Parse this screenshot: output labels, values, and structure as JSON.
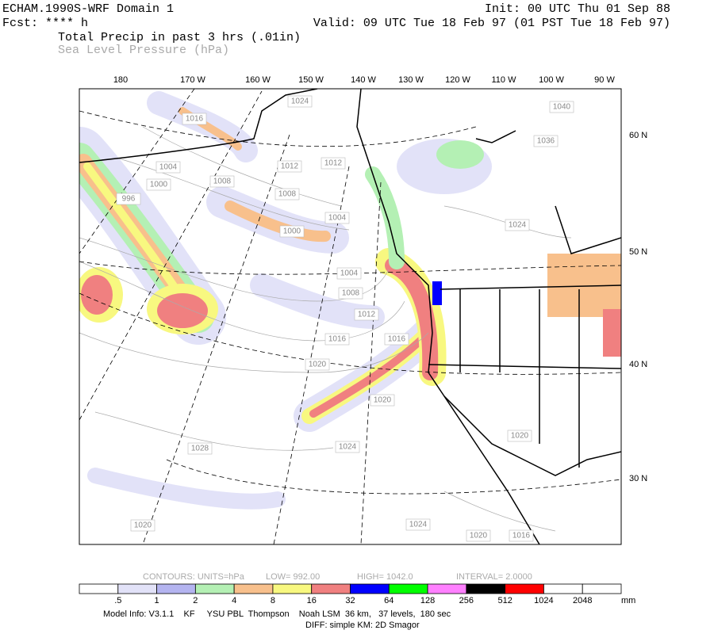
{
  "header": {
    "model": "ECHAM.1990S-WRF Domain 1",
    "init": "Init: 00 UTC Thu 01 Sep 88",
    "forecast": "Fcst: **** h",
    "valid": "Valid: 09 UTC Tue 18 Feb 97 (01 PST Tue 18 Feb 97)",
    "field_1": "Total Precip in past 3 hrs (.01in)",
    "field_2": "Sea Level Pressure (hPa)"
  },
  "map": {
    "lon_labels": [
      "180",
      "170 W",
      "160 W",
      "150 W",
      "140 W",
      "130 W",
      "120 W",
      "110 W",
      "100 W",
      "90 W"
    ],
    "lat_labels": [
      "60 N",
      "50 N",
      "40 N",
      "30 N"
    ],
    "isobar_labels": [
      "1024",
      "1016",
      "1040",
      "1036",
      "1012",
      "1012",
      "1004",
      "1000",
      "1008",
      "996",
      "1008",
      "1004",
      "1000",
      "1024",
      "1004",
      "1008",
      "1012",
      "1016",
      "1016",
      "1020",
      "1020",
      "1020",
      "1028",
      "1024",
      "1024",
      "1020",
      "1020",
      "1016"
    ]
  },
  "contour_info": {
    "units": "CONTOURS:  UNITS=hPa",
    "low": "LOW=   992.00",
    "high": "HIGH=  1042.0",
    "interval": "INTERVAL=   2.0000"
  },
  "colorbar": {
    "labels": [
      ".5",
      "1",
      "2",
      "4",
      "8",
      "16",
      "32",
      "64",
      "128",
      "256",
      "512",
      "1024",
      "2048"
    ],
    "unit": "mm",
    "colors": [
      "#ffffff",
      "#e2e2f8",
      "#b4b4f0",
      "#b4f0b4",
      "#f8c08c",
      "#f8f880",
      "#f08080",
      "#0000ff",
      "#00ff00",
      "#ff80ff",
      "#000000",
      "#ff0000",
      "#ffffff",
      "#ffffff"
    ]
  },
  "footer": {
    "model_info": "Model Info: V3.1.1    KF     YSU PBL  Thompson    Noah LSM  36 km,   37 levels,  180 sec",
    "diff": "DIFF: simple KM: 2D Smagor"
  }
}
